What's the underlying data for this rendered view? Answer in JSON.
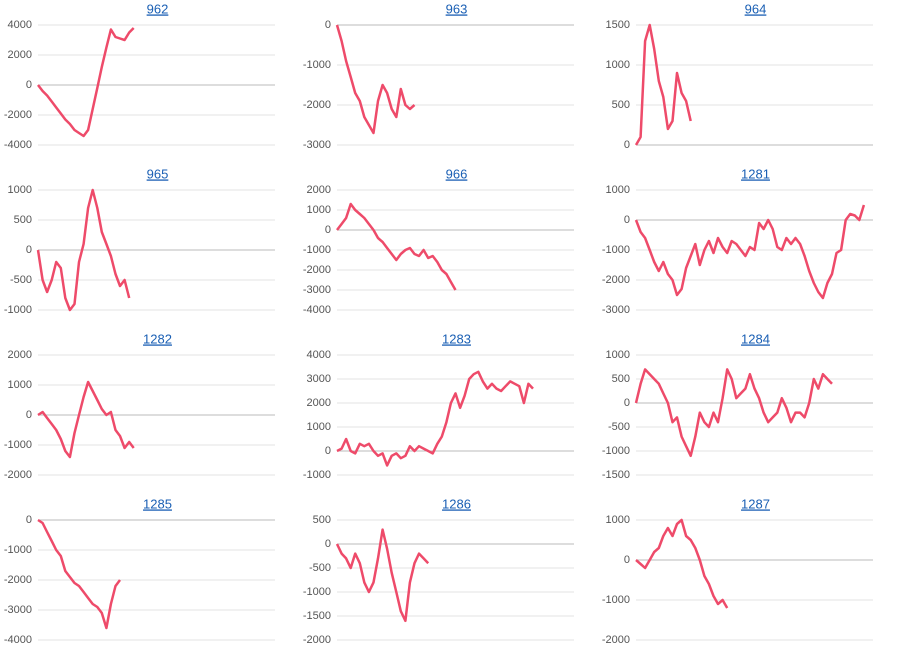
{
  "chart_data": [
    {
      "type": "line",
      "title": "962",
      "color": "#ee4b6a",
      "grid": true,
      "xlim": [
        0,
        52
      ],
      "ylim": [
        -4000,
        4000
      ],
      "yticks": [
        4000,
        2000,
        0,
        -2000,
        -4000
      ],
      "values": [
        0,
        -400,
        -700,
        -1100,
        -1500,
        -1900,
        -2300,
        -2600,
        -3000,
        -3200,
        -3400,
        -3000,
        -1600,
        -200,
        1200,
        2500,
        3700,
        3200,
        3100,
        3000,
        3500,
        3800
      ]
    },
    {
      "type": "line",
      "title": "963",
      "color": "#ee4b6a",
      "grid": true,
      "xlim": [
        0,
        52
      ],
      "ylim": [
        -3000,
        0
      ],
      "yticks": [
        0,
        -1000,
        -2000,
        -3000
      ],
      "values": [
        0,
        -400,
        -900,
        -1300,
        -1700,
        -1900,
        -2300,
        -2500,
        -2700,
        -1900,
        -1500,
        -1700,
        -2100,
        -2300,
        -1600,
        -2000,
        -2100,
        -2000
      ]
    },
    {
      "type": "line",
      "title": "964",
      "color": "#ee4b6a",
      "grid": true,
      "xlim": [
        0,
        52
      ],
      "ylim": [
        0,
        1500
      ],
      "yticks": [
        1500,
        1000,
        500,
        0
      ],
      "values": [
        0,
        100,
        1300,
        1500,
        1200,
        800,
        600,
        200,
        300,
        900,
        650,
        550,
        300
      ]
    },
    {
      "type": "line",
      "title": "965",
      "color": "#ee4b6a",
      "grid": true,
      "xlim": [
        0,
        52
      ],
      "ylim": [
        -1000,
        1000
      ],
      "yticks": [
        1000,
        500,
        0,
        -500,
        -1000
      ],
      "values": [
        0,
        -500,
        -700,
        -500,
        -200,
        -300,
        -800,
        -1000,
        -900,
        -200,
        100,
        700,
        1000,
        700,
        300,
        100,
        -100,
        -400,
        -600,
        -500,
        -800
      ]
    },
    {
      "type": "line",
      "title": "966",
      "color": "#ee4b6a",
      "grid": true,
      "xlim": [
        0,
        52
      ],
      "ylim": [
        -4000,
        2000
      ],
      "yticks": [
        2000,
        1000,
        0,
        -1000,
        -2000,
        -3000,
        -4000
      ],
      "values": [
        0,
        300,
        600,
        1300,
        1000,
        800,
        600,
        300,
        0,
        -400,
        -600,
        -900,
        -1200,
        -1500,
        -1200,
        -1000,
        -900,
        -1200,
        -1300,
        -1000,
        -1400,
        -1300,
        -1600,
        -2000,
        -2200,
        -2600,
        -3000
      ]
    },
    {
      "type": "line",
      "title": "1281",
      "color": "#ee4b6a",
      "grid": true,
      "xlim": [
        0,
        52
      ],
      "ylim": [
        -3000,
        1000
      ],
      "yticks": [
        1000,
        0,
        -1000,
        -2000,
        -3000
      ],
      "values": [
        0,
        -400,
        -600,
        -1000,
        -1400,
        -1700,
        -1400,
        -1800,
        -2000,
        -2500,
        -2300,
        -1600,
        -1200,
        -800,
        -1500,
        -1000,
        -700,
        -1100,
        -600,
        -900,
        -1100,
        -700,
        -800,
        -1000,
        -1200,
        -900,
        -1000,
        -100,
        -300,
        0,
        -300,
        -900,
        -1000,
        -600,
        -800,
        -600,
        -800,
        -1200,
        -1700,
        -2100,
        -2400,
        -2600,
        -2100,
        -1800,
        -1100,
        -1000,
        0,
        200,
        150,
        0,
        500
      ]
    },
    {
      "type": "line",
      "title": "1282",
      "color": "#ee4b6a",
      "grid": true,
      "xlim": [
        0,
        52
      ],
      "ylim": [
        -2000,
        2000
      ],
      "yticks": [
        2000,
        1000,
        0,
        -1000,
        -2000
      ],
      "values": [
        0,
        100,
        -100,
        -300,
        -500,
        -800,
        -1200,
        -1400,
        -600,
        0,
        600,
        1100,
        800,
        500,
        200,
        0,
        100,
        -500,
        -700,
        -1100,
        -900,
        -1100
      ]
    },
    {
      "type": "line",
      "title": "1283",
      "color": "#ee4b6a",
      "grid": true,
      "xlim": [
        0,
        52
      ],
      "ylim": [
        -1000,
        4000
      ],
      "yticks": [
        4000,
        3000,
        2000,
        1000,
        0,
        -1000
      ],
      "values": [
        0,
        100,
        500,
        0,
        -100,
        300,
        200,
        300,
        0,
        -200,
        -100,
        -600,
        -200,
        -100,
        -300,
        -200,
        200,
        0,
        200,
        100,
        0,
        -100,
        300,
        600,
        1200,
        2000,
        2400,
        1800,
        2300,
        3000,
        3200,
        3300,
        2900,
        2600,
        2800,
        2600,
        2500,
        2700,
        2900,
        2800,
        2700,
        2000,
        2800,
        2600
      ]
    },
    {
      "type": "line",
      "title": "1284",
      "color": "#ee4b6a",
      "grid": true,
      "xlim": [
        0,
        52
      ],
      "ylim": [
        -1500,
        1000
      ],
      "yticks": [
        1000,
        500,
        0,
        -500,
        -1000,
        -1500
      ],
      "values": [
        0,
        400,
        700,
        600,
        500,
        400,
        200,
        0,
        -400,
        -300,
        -700,
        -900,
        -1100,
        -700,
        -200,
        -400,
        -500,
        -200,
        -400,
        100,
        700,
        500,
        100,
        200,
        300,
        600,
        300,
        100,
        -200,
        -400,
        -300,
        -200,
        100,
        -100,
        -400,
        -200,
        -200,
        -300,
        0,
        500,
        300,
        600,
        500,
        400
      ]
    },
    {
      "type": "line",
      "title": "1285",
      "color": "#ee4b6a",
      "grid": true,
      "xlim": [
        0,
        52
      ],
      "ylim": [
        -4000,
        0
      ],
      "yticks": [
        0,
        -1000,
        -2000,
        -3000,
        -4000
      ],
      "values": [
        0,
        -100,
        -400,
        -700,
        -1000,
        -1200,
        -1700,
        -1900,
        -2100,
        -2200,
        -2400,
        -2600,
        -2800,
        -2900,
        -3100,
        -3600,
        -2800,
        -2200,
        -2000
      ]
    },
    {
      "type": "line",
      "title": "1286",
      "color": "#ee4b6a",
      "grid": true,
      "xlim": [
        0,
        52
      ],
      "ylim": [
        -2000,
        500
      ],
      "yticks": [
        500,
        0,
        -500,
        -1000,
        -1500,
        -2000
      ],
      "values": [
        0,
        -200,
        -300,
        -500,
        -200,
        -400,
        -800,
        -1000,
        -800,
        -300,
        300,
        -100,
        -600,
        -1000,
        -1400,
        -1600,
        -800,
        -400,
        -200,
        -300,
        -400
      ]
    },
    {
      "type": "line",
      "title": "1287",
      "color": "#ee4b6a",
      "grid": true,
      "xlim": [
        0,
        52
      ],
      "ylim": [
        -2000,
        1000
      ],
      "yticks": [
        1000,
        0,
        -1000,
        -2000
      ],
      "values": [
        0,
        -100,
        -200,
        0,
        200,
        300,
        600,
        800,
        600,
        900,
        1000,
        600,
        500,
        300,
        0,
        -400,
        -600,
        -900,
        -1100,
        -1000,
        -1200
      ]
    }
  ]
}
